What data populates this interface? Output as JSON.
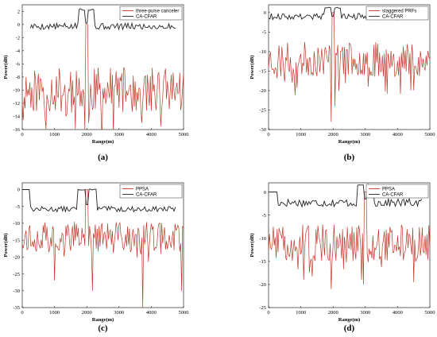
{
  "chart_data": [
    {
      "type": "line",
      "caption": "(a)",
      "xlabel": "Range(m)",
      "ylabel": "Power(dB)",
      "xlim": [
        0,
        5000
      ],
      "ylim": [
        -16,
        3
      ],
      "xticks": [
        0,
        1000,
        2000,
        3000,
        4000,
        5000
      ],
      "yticks": [
        -16,
        -14,
        -12,
        -10,
        -8,
        -6,
        -4,
        -2,
        0,
        2
      ],
      "legend_position": "top-right",
      "series": [
        {
          "name": "three-pulse canceler",
          "color": "#c0392b",
          "kind": "noise",
          "level": -10,
          "spread": 3.5,
          "peak_x": 2000,
          "peak_y": 0,
          "dips": [
            [
              1950,
              -16
            ],
            [
              2050,
              -15
            ],
            [
              1350,
              -14
            ],
            [
              4300,
              -15.5
            ],
            [
              3700,
              -15
            ]
          ],
          "seed": 11
        },
        {
          "name": "CA-CFAR",
          "color": "#222222",
          "kind": "threshold",
          "level": -0.3,
          "spread": 0.5,
          "start": 250,
          "end": 4750,
          "plateau": [
            1750,
            2250,
            2.3
          ],
          "notch": [
            2000,
            0.2
          ],
          "seed": 5
        }
      ]
    },
    {
      "type": "line",
      "caption": "(b)",
      "xlabel": "Range(m)",
      "ylabel": "Power(dB)",
      "xlim": [
        0,
        5000
      ],
      "ylim": [
        -30,
        2
      ],
      "xticks": [
        0,
        1000,
        2000,
        3000,
        4000,
        5000
      ],
      "yticks": [
        -30,
        -25,
        -20,
        -15,
        -10,
        -5,
        0
      ],
      "legend_position": "top-right",
      "series": [
        {
          "name": "staggered PRFs",
          "color": "#c0392b",
          "kind": "noise",
          "level": -12,
          "spread": 4.5,
          "peak_x": 2000,
          "peak_y": 0,
          "dips": [
            [
              1950,
              -28
            ],
            [
              2020,
              -24
            ],
            [
              4400,
              -20
            ],
            [
              3100,
              -19
            ]
          ],
          "seed": 23
        },
        {
          "name": "CA-CFAR",
          "color": "#222222",
          "kind": "threshold",
          "level": -1,
          "spread": 0.8,
          "start": 0,
          "end": 4700,
          "plateau": [
            1750,
            2250,
            1.2
          ],
          "notch": [
            2000,
            -1
          ],
          "seed": 9
        }
      ]
    },
    {
      "type": "line",
      "caption": "(c)",
      "xlabel": "Range(m)",
      "ylabel": "Power(dB)",
      "xlim": [
        0,
        5000
      ],
      "ylim": [
        -35,
        2
      ],
      "xticks": [
        0,
        1000,
        2000,
        3000,
        4000,
        5000
      ],
      "yticks": [
        -35,
        -30,
        -25,
        -20,
        -15,
        -10,
        -5,
        0
      ],
      "legend_position": "top-right",
      "series": [
        {
          "name": "PPSA",
          "color": "#c0392b",
          "kind": "noise",
          "level": -14,
          "spread": 4.5,
          "peak_x": 2000,
          "peak_y": 0,
          "dips": [
            [
              3750,
              -35
            ],
            [
              2180,
              -30
            ],
            [
              1000,
              -27
            ],
            [
              4950,
              -30
            ]
          ],
          "seed": 37
        },
        {
          "name": "CA-CFAR",
          "color": "#222222",
          "kind": "threshold",
          "level": -5.8,
          "spread": 0.8,
          "start": 0,
          "end": 4750,
          "plateau": [
            1700,
            2300,
            0
          ],
          "notch": [
            2000,
            -4.5
          ],
          "head": [
            0,
            250,
            0
          ],
          "seed": 13
        }
      ]
    },
    {
      "type": "line",
      "caption": "(d)",
      "xlabel": "Range(m)",
      "ylabel": "Power(dB)",
      "xlim": [
        0,
        5000
      ],
      "ylim": [
        -25,
        2
      ],
      "xticks": [
        0,
        1000,
        2000,
        3000,
        4000,
        5000
      ],
      "yticks": [
        -25,
        -20,
        -15,
        -10,
        -5,
        0
      ],
      "legend_position": "top-right",
      "series": [
        {
          "name": "PPSA",
          "color": "#c0392b",
          "kind": "noise",
          "level": -11,
          "spread": 4,
          "peak_x": 3000,
          "peak_y": 0,
          "dips": [
            [
              1950,
              -21
            ],
            [
              1100,
              -19
            ],
            [
              4500,
              -19.5
            ],
            [
              2950,
              -20
            ]
          ],
          "seed": 51
        },
        {
          "name": "CA-CFAR",
          "color": "#222222",
          "kind": "threshold",
          "level": -2.3,
          "spread": 0.9,
          "start": 0,
          "end": 4750,
          "plateau": [
            2750,
            3250,
            1.5
          ],
          "notch": [
            3000,
            -1.5
          ],
          "head": [
            0,
            300,
            0
          ],
          "seed": 17
        }
      ]
    }
  ]
}
